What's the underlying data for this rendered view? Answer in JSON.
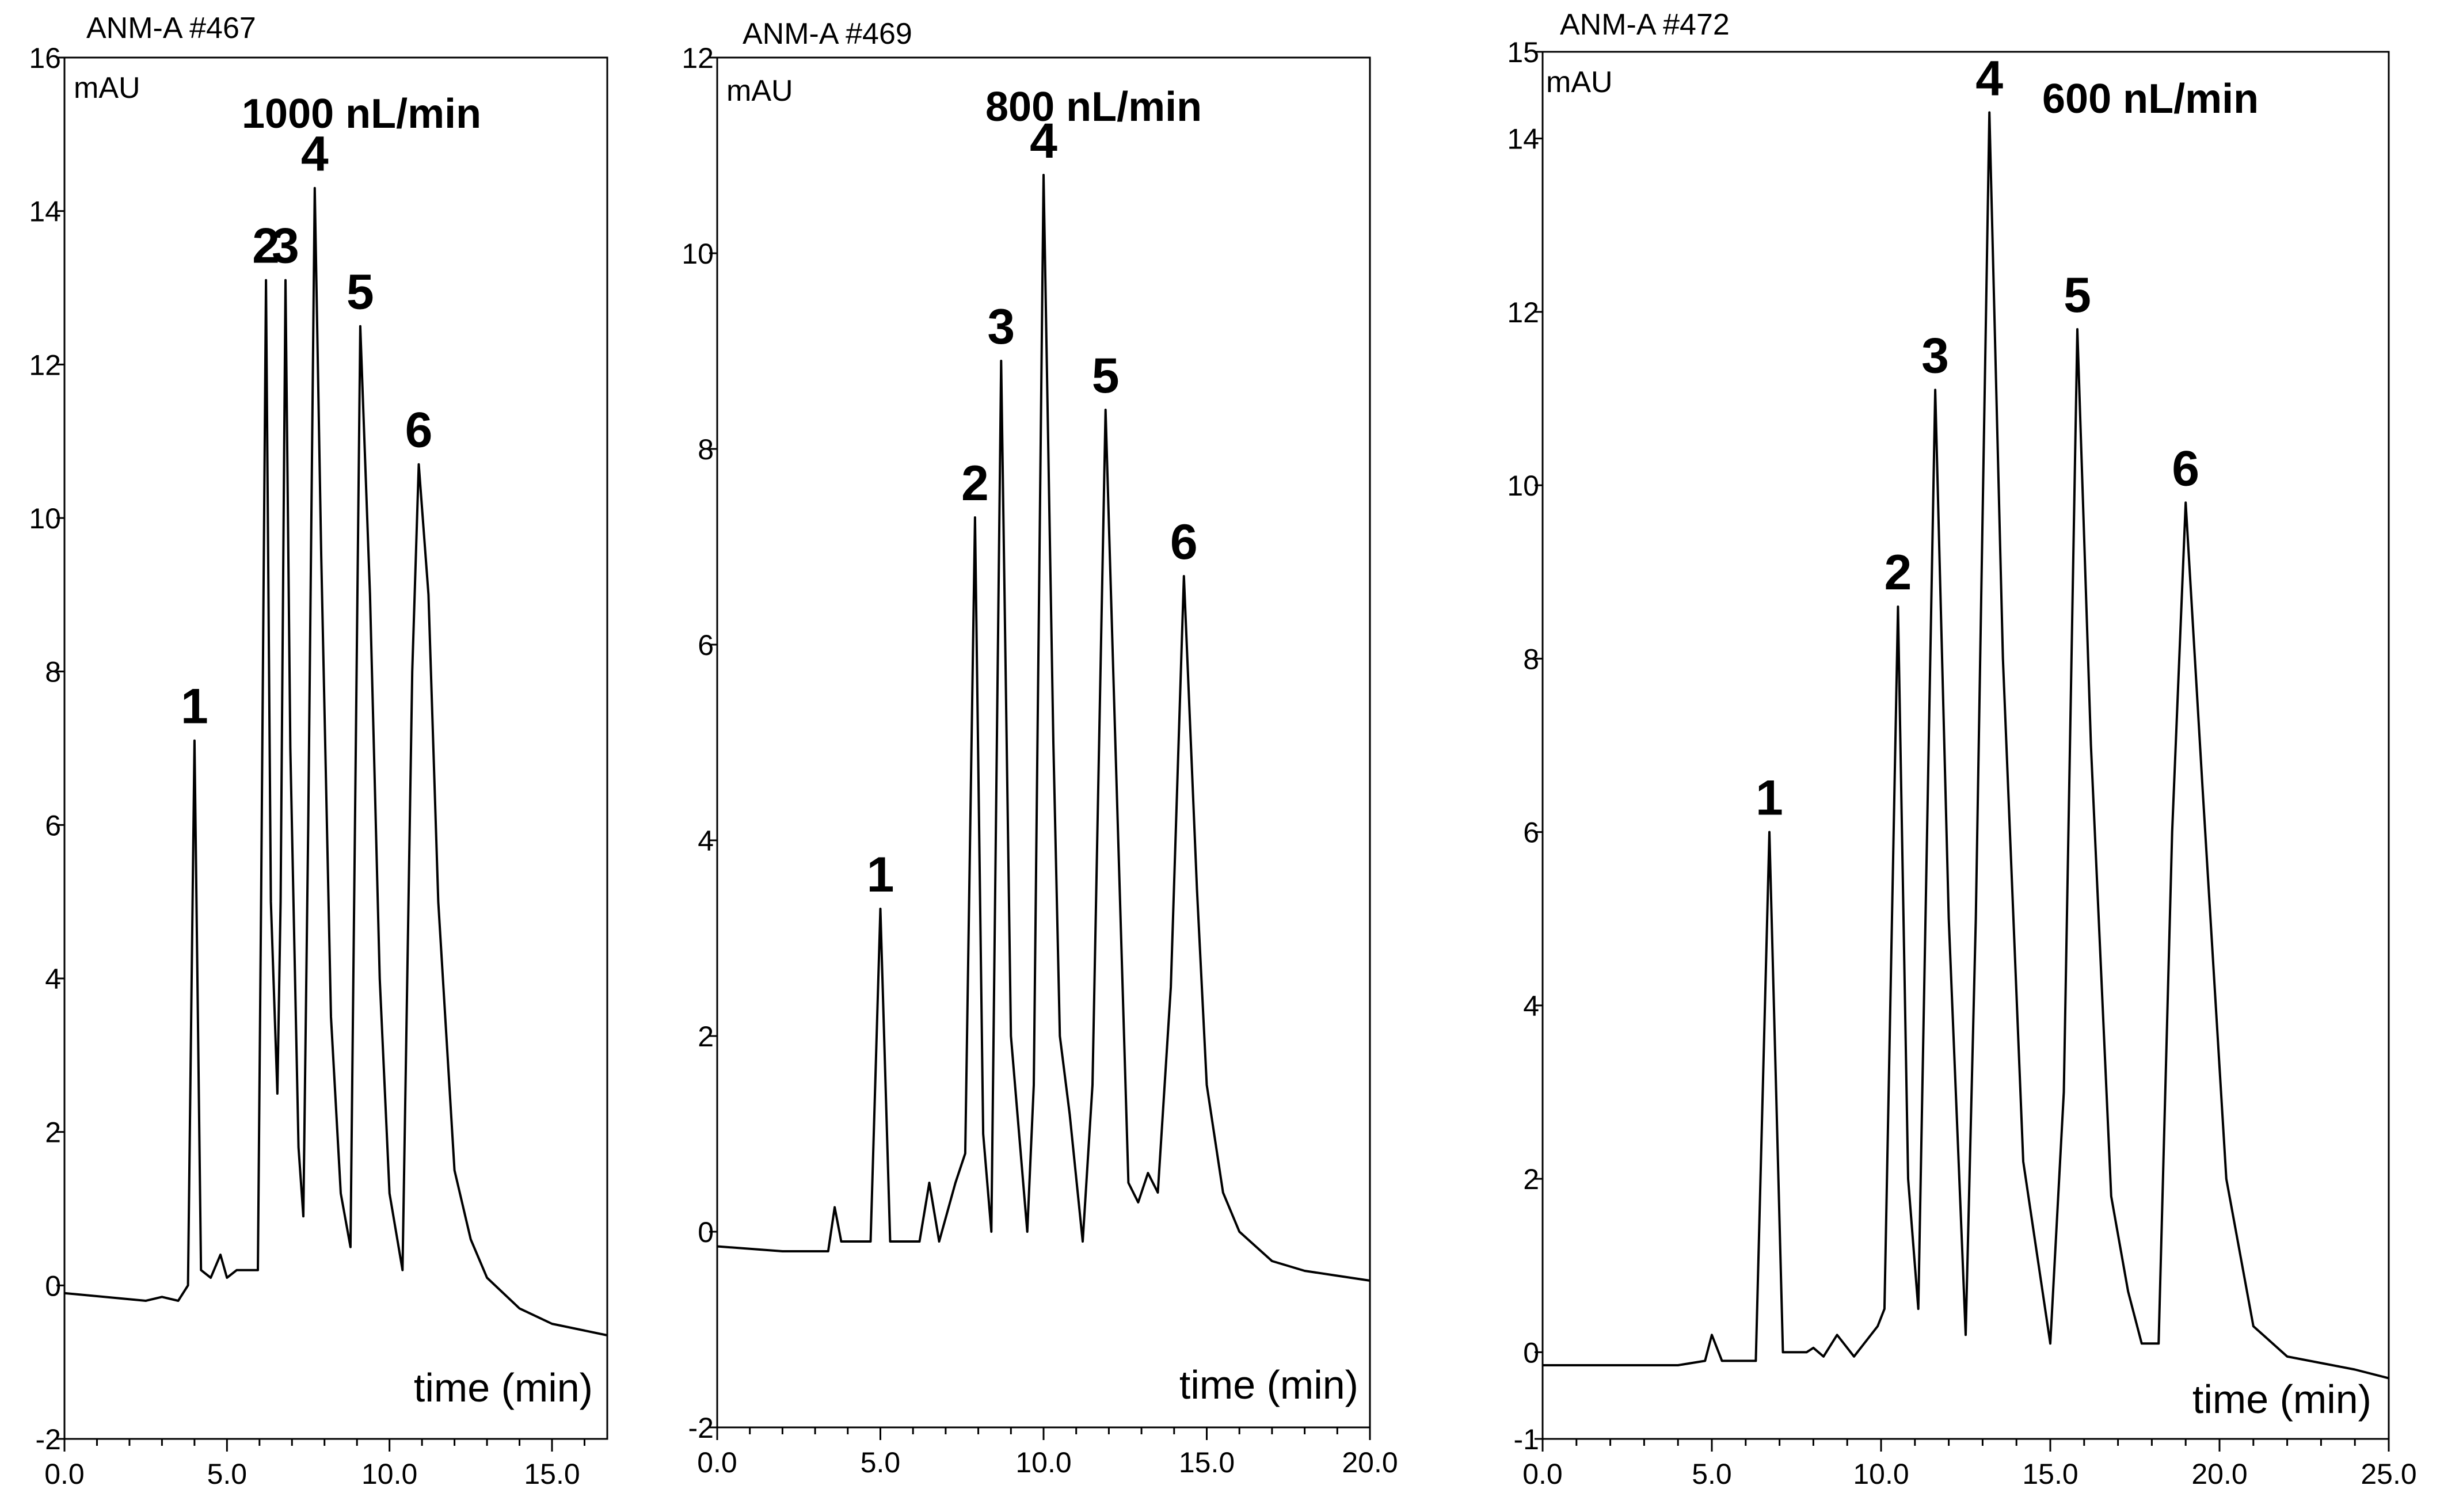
{
  "chart_data": [
    {
      "type": "line",
      "title": "ANM-A #467",
      "annotation": "1000 nL/min",
      "ylabel": "mAU",
      "xlabel": "time (min)",
      "xlim": [
        0,
        16.7
      ],
      "ylim": [
        -2,
        16
      ],
      "x_ticks": [
        0.0,
        5.0,
        10.0,
        15.0
      ],
      "x_tick_labels": [
        "0.0",
        "5.0",
        "10.0",
        "15.0"
      ],
      "y_ticks": [
        -2,
        0,
        2,
        4,
        6,
        8,
        10,
        12,
        14,
        16
      ],
      "y_tick_labels": [
        "-2",
        "0",
        "2",
        "4",
        "6",
        "8",
        "10",
        "12",
        "14",
        "16"
      ],
      "peaks": [
        {
          "label": "1",
          "time": 4.0,
          "height": 7.1
        },
        {
          "label": "2",
          "time": 6.2,
          "height": 13.1
        },
        {
          "label": "3",
          "time": 6.8,
          "height": 13.1
        },
        {
          "label": "4",
          "time": 7.7,
          "height": 14.3
        },
        {
          "label": "5",
          "time": 9.1,
          "height": 12.5
        },
        {
          "label": "6",
          "time": 10.9,
          "height": 10.7
        }
      ],
      "series": [
        {
          "name": "trace",
          "x": [
            0.0,
            2.5,
            3.0,
            3.5,
            3.8,
            4.0,
            4.2,
            4.5,
            4.8,
            5.0,
            5.3,
            5.7,
            5.95,
            6.05,
            6.2,
            6.35,
            6.55,
            6.65,
            6.8,
            6.95,
            7.2,
            7.35,
            7.5,
            7.7,
            7.9,
            8.2,
            8.5,
            8.8,
            9.1,
            9.4,
            9.7,
            10.0,
            10.4,
            10.7,
            10.9,
            11.2,
            11.5,
            12.0,
            12.5,
            13.0,
            14.0,
            15.0,
            16.7
          ],
          "y": [
            -0.1,
            -0.2,
            -0.15,
            -0.2,
            0.0,
            7.1,
            0.2,
            0.1,
            0.4,
            0.1,
            0.2,
            0.2,
            0.2,
            5.0,
            13.1,
            5.0,
            2.5,
            5.0,
            13.1,
            7.0,
            1.8,
            0.9,
            6.0,
            14.3,
            9.5,
            3.5,
            1.2,
            0.5,
            12.5,
            9.0,
            4.0,
            1.2,
            0.2,
            8.0,
            10.7,
            9.0,
            5.0,
            1.5,
            0.6,
            0.1,
            -0.3,
            -0.5,
            -0.65
          ]
        }
      ]
    },
    {
      "type": "line",
      "title": "ANM-A #469",
      "annotation": "800 nL/min",
      "ylabel": "mAU",
      "xlabel": "time (min)",
      "xlim": [
        0,
        20
      ],
      "ylim": [
        -2,
        12
      ],
      "x_ticks": [
        0.0,
        5.0,
        10.0,
        15.0,
        20.0
      ],
      "x_tick_labels": [
        "0.0",
        "5.0",
        "10.0",
        "15.0",
        "20.0"
      ],
      "y_ticks": [
        -2,
        0,
        2,
        4,
        6,
        8,
        10,
        12
      ],
      "y_tick_labels": [
        "-2",
        "0",
        "2",
        "4",
        "6",
        "8",
        "10",
        "12"
      ],
      "peaks": [
        {
          "label": "1",
          "time": 5.0,
          "height": 3.3
        },
        {
          "label": "2",
          "time": 7.9,
          "height": 7.3
        },
        {
          "label": "3",
          "time": 8.7,
          "height": 8.9
        },
        {
          "label": "4",
          "time": 10.0,
          "height": 10.8
        },
        {
          "label": "5",
          "time": 11.9,
          "height": 8.4
        },
        {
          "label": "6",
          "time": 14.3,
          "height": 6.7
        }
      ],
      "series": [
        {
          "name": "trace",
          "x": [
            0.0,
            2.0,
            3.4,
            3.6,
            3.8,
            4.7,
            5.0,
            5.3,
            6.2,
            6.5,
            6.8,
            7.3,
            7.6,
            7.9,
            8.15,
            8.4,
            8.7,
            9.0,
            9.5,
            9.7,
            10.0,
            10.3,
            10.5,
            10.8,
            11.2,
            11.5,
            11.9,
            12.2,
            12.6,
            12.9,
            13.2,
            13.5,
            13.9,
            14.3,
            14.7,
            15.0,
            15.5,
            16.0,
            17.0,
            18.0,
            19.0,
            20.0
          ],
          "y": [
            -0.15,
            -0.2,
            -0.2,
            0.25,
            -0.1,
            -0.1,
            3.3,
            -0.1,
            -0.1,
            0.5,
            -0.1,
            0.5,
            0.8,
            7.3,
            1.0,
            0.0,
            8.9,
            2.0,
            0.0,
            1.5,
            10.8,
            5.0,
            2.0,
            1.2,
            -0.1,
            1.5,
            8.4,
            5.0,
            0.5,
            0.3,
            0.6,
            0.4,
            2.5,
            6.7,
            3.5,
            1.5,
            0.4,
            0.0,
            -0.3,
            -0.4,
            -0.45,
            -0.5
          ]
        }
      ]
    },
    {
      "type": "line",
      "title": "ANM-A #472",
      "annotation": "600 nL/min",
      "ylabel": "mAU",
      "xlabel": "time (min)",
      "xlim": [
        0,
        25
      ],
      "ylim": [
        -1,
        15
      ],
      "x_ticks": [
        0.0,
        5.0,
        10.0,
        15.0,
        20.0,
        25.0
      ],
      "x_tick_labels": [
        "0.0",
        "5.0",
        "10.0",
        "15.0",
        "20.0",
        "25.0"
      ],
      "y_ticks": [
        -1,
        0,
        2,
        4,
        6,
        8,
        10,
        12,
        14,
        15
      ],
      "y_tick_labels": [
        "-1",
        "0",
        "2",
        "4",
        "6",
        "8",
        "10",
        "12",
        "14",
        "15"
      ],
      "peaks": [
        {
          "label": "1",
          "time": 6.7,
          "height": 6.0
        },
        {
          "label": "2",
          "time": 10.5,
          "height": 8.6
        },
        {
          "label": "3",
          "time": 11.6,
          "height": 11.1
        },
        {
          "label": "4",
          "time": 13.2,
          "height": 14.3
        },
        {
          "label": "5",
          "time": 15.8,
          "height": 11.8
        },
        {
          "label": "6",
          "time": 19.0,
          "height": 9.8
        }
      ],
      "series": [
        {
          "name": "trace",
          "x": [
            0.0,
            4.0,
            4.8,
            5.0,
            5.3,
            6.3,
            6.7,
            7.1,
            7.8,
            8.0,
            8.3,
            8.7,
            9.2,
            9.9,
            10.1,
            10.5,
            10.8,
            11.1,
            11.6,
            12.0,
            12.5,
            12.8,
            13.2,
            13.6,
            14.2,
            15.0,
            15.4,
            15.8,
            16.2,
            16.8,
            17.3,
            17.7,
            18.2,
            18.6,
            19.0,
            19.5,
            20.2,
            21.0,
            22.0,
            24.0,
            25.0
          ],
          "y": [
            -0.15,
            -0.15,
            -0.1,
            0.2,
            -0.1,
            -0.1,
            6.0,
            0.0,
            0.0,
            0.05,
            -0.05,
            0.2,
            -0.05,
            0.3,
            0.5,
            8.6,
            2.0,
            0.5,
            11.1,
            5.0,
            0.2,
            5.0,
            14.3,
            8.0,
            2.2,
            0.1,
            3.0,
            11.8,
            7.0,
            1.8,
            0.7,
            0.1,
            0.1,
            6.0,
            9.8,
            6.5,
            2.0,
            0.3,
            -0.05,
            -0.2,
            -0.3
          ]
        }
      ]
    }
  ]
}
